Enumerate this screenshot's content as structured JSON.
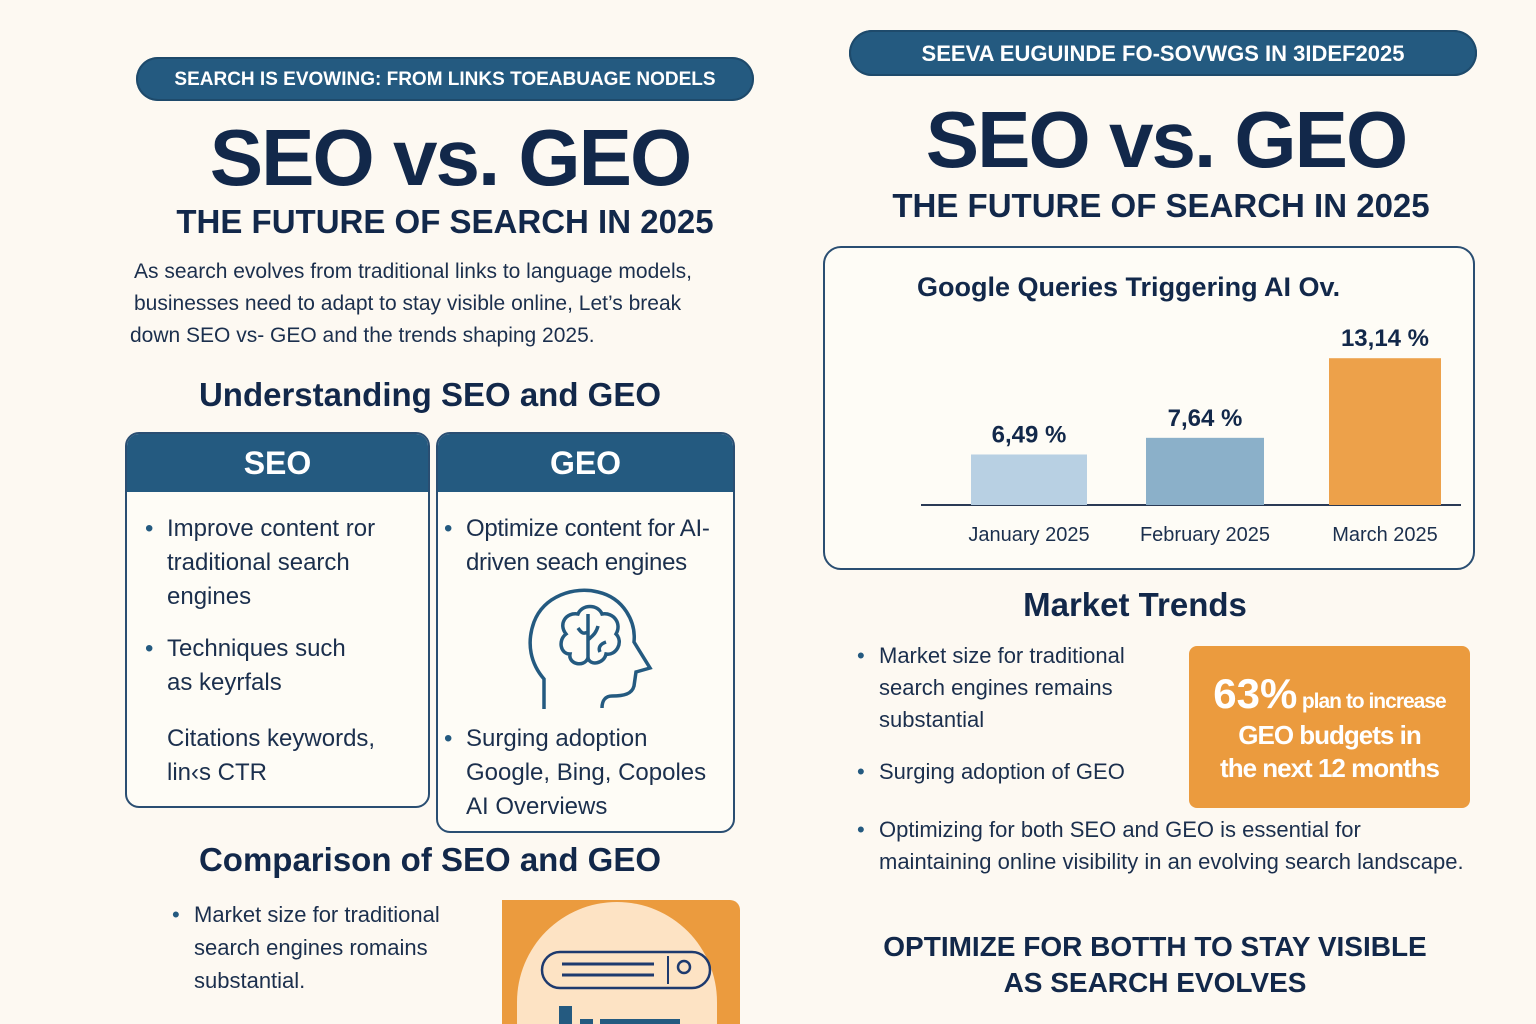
{
  "left": {
    "banner": "SEARCH IS EVOWING: FROM LINKS TOEABUAGE NODELS",
    "title": "SEO vs. GEO",
    "subtitle": "THE FUTURE OF SEARCH IN 2025",
    "intro": [
      "As search evolves from traditional links to language models,",
      "businesses need to adapt to stay visible online, Let’s break",
      "down SEO vs- GEO and the trends shaping 2025."
    ],
    "section1": "Understanding SEO and GEO",
    "seo_card": {
      "title": "SEO",
      "items": [
        "Improve content ror traditional search engines",
        "Techniques such as keyrfals",
        "Citations keywords, lin‹s CTR"
      ]
    },
    "geo_card": {
      "title": "GEO",
      "items": [
        "Optimize content for AI-driven seach engines",
        "Surging adoption Google, Bing, Copoles AI Overviews"
      ]
    },
    "section2": "Comparison of SEO and GEO",
    "comparison_items": [
      "Market size for traditional search engines romains substantial."
    ]
  },
  "right": {
    "banner": "SEEVA EUGUINDE FO-SOVWGS IN 3IDEF2025",
    "title": "SEO vs. GEO",
    "subtitle": "THE FUTURE OF SEARCH IN 2025",
    "market_title": "Market Trends",
    "trends": [
      "Market size for traditional search engines remains substantial",
      "Surging adoption of GEO",
      "Optimizing for both SEO and GEO is essential for maintaining online visibility in an evolving search landscape."
    ],
    "stat": {
      "value": "63%",
      "line1": "plan to increase",
      "line2": "GEO budgets in",
      "line3": "the next 12 months"
    },
    "cta": [
      "OPTIMIZE FOR BOTTH TO STAY VISIBLE",
      "AS SEARCH EVOLVES"
    ]
  },
  "colors": {
    "navy": "#12284a",
    "blue": "#245a80",
    "orange": "#eb9b3e"
  },
  "chart_data": {
    "type": "bar",
    "title": "Google Queries Triggering AI Ov.",
    "categories": [
      "January 2025",
      "February 2025",
      "March 2025"
    ],
    "values": [
      6.49,
      7.64,
      13.14
    ],
    "labels": [
      "6,49 %",
      "7,64 %",
      "13,14 %"
    ],
    "colors": [
      "#b8d0e3",
      "#8bb0c9",
      "#eda14a"
    ],
    "ylim": [
      3,
      13.5
    ],
    "grid": false,
    "xlabel": "",
    "ylabel": ""
  }
}
